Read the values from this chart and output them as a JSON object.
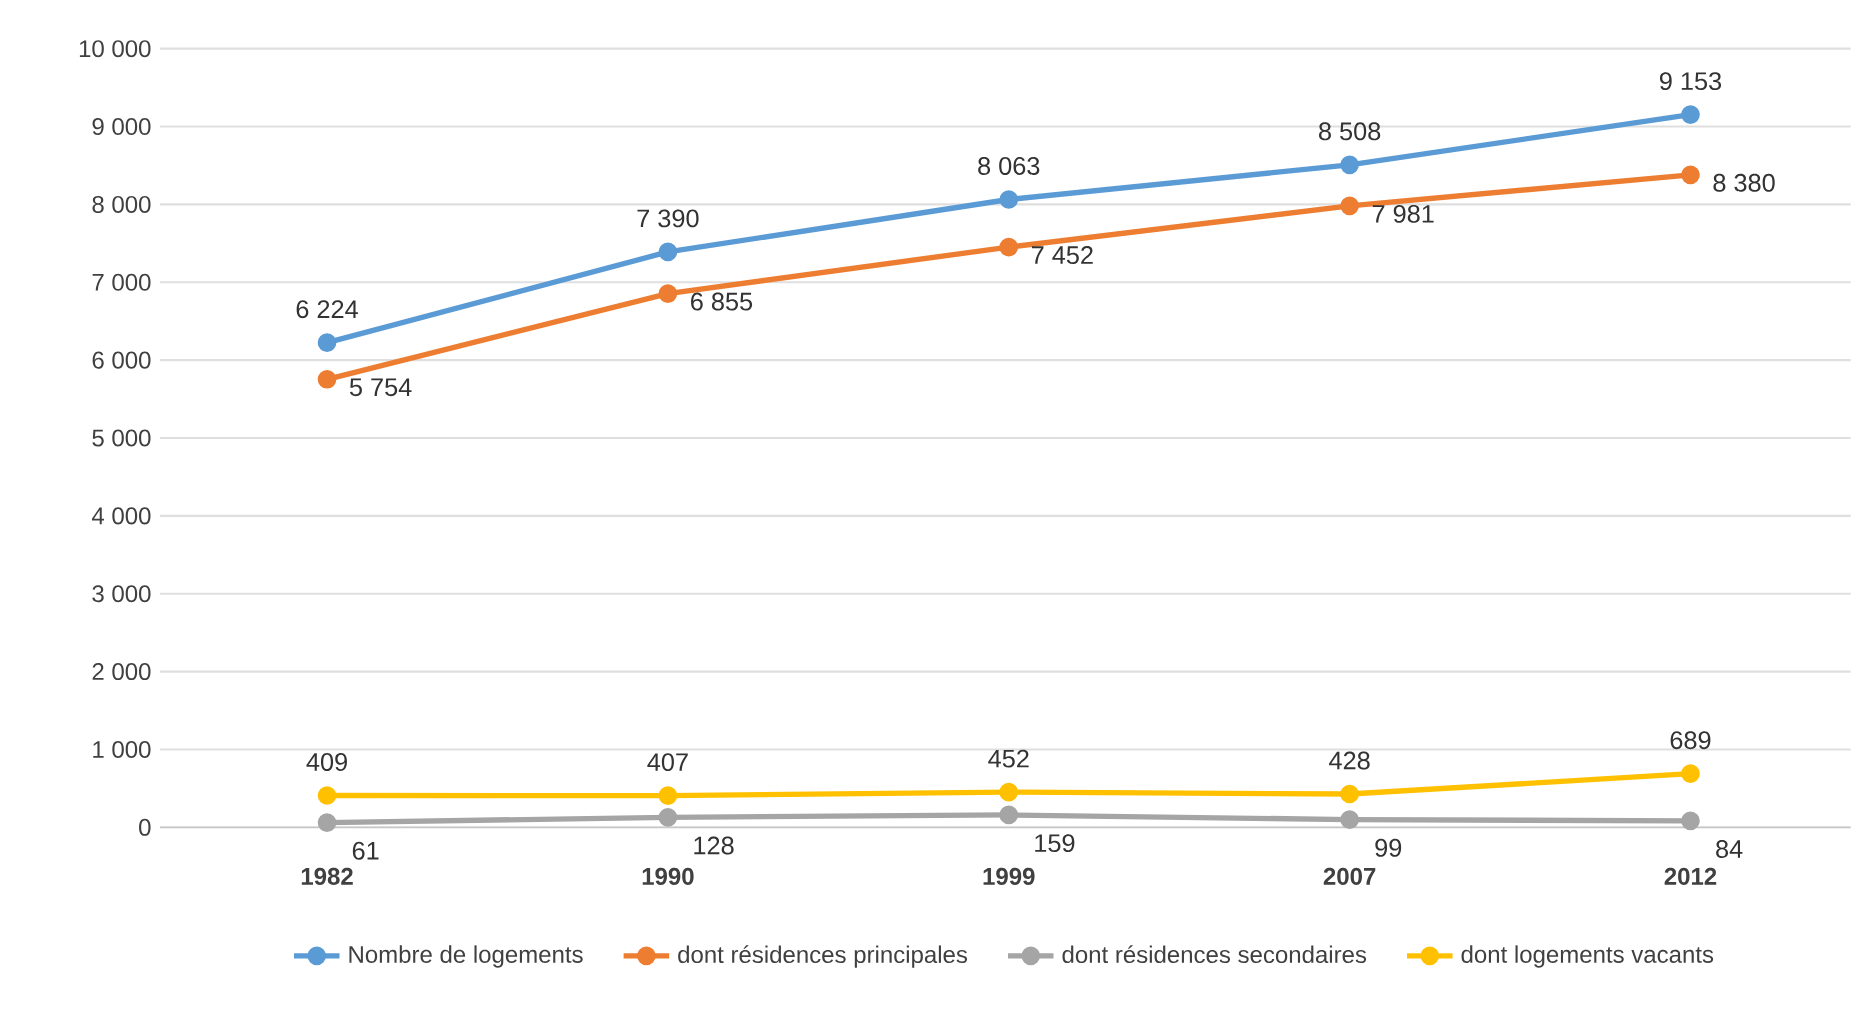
{
  "chart_data": {
    "type": "line",
    "categories": [
      "1982",
      "1990",
      "1999",
      "2007",
      "2012"
    ],
    "series": [
      {
        "name": "Nombre de logements",
        "color": "#5b9bd5",
        "values": [
          6224,
          7390,
          8063,
          8508,
          9153
        ],
        "value_labels": [
          "6 224",
          "7 390",
          "8 063",
          "8 508",
          "9 153"
        ]
      },
      {
        "name": "dont résidences principales",
        "color": "#ed7d31",
        "values": [
          5754,
          6855,
          7452,
          7981,
          8380
        ],
        "value_labels": [
          "5 754",
          "6 855",
          "7 452",
          "7 981",
          "8 380"
        ]
      },
      {
        "name": "dont résidences secondaires",
        "color": "#a5a5a5",
        "values": [
          61,
          128,
          159,
          99,
          84
        ],
        "value_labels": [
          "61",
          "128",
          "159",
          "99",
          "84"
        ]
      },
      {
        "name": "dont logements vacants",
        "color": "#ffc000",
        "values": [
          409,
          407,
          452,
          428,
          689
        ],
        "value_labels": [
          "409",
          "407",
          "452",
          "428",
          "689"
        ]
      }
    ],
    "ylim": [
      0,
      10000
    ],
    "yticks": [
      {
        "value": 0,
        "label": "0"
      },
      {
        "value": 1000,
        "label": "1 000"
      },
      {
        "value": 2000,
        "label": "2 000"
      },
      {
        "value": 3000,
        "label": "3 000"
      },
      {
        "value": 4000,
        "label": "4 000"
      },
      {
        "value": 5000,
        "label": "5 000"
      },
      {
        "value": 6000,
        "label": "6 000"
      },
      {
        "value": 7000,
        "label": "7 000"
      },
      {
        "value": 8000,
        "label": "8 000"
      },
      {
        "value": 9000,
        "label": "9 000"
      },
      {
        "value": 10000,
        "label": "10 000"
      }
    ],
    "grid": "y",
    "legend": "bottom",
    "marker": "circle",
    "line_style": "solid"
  }
}
